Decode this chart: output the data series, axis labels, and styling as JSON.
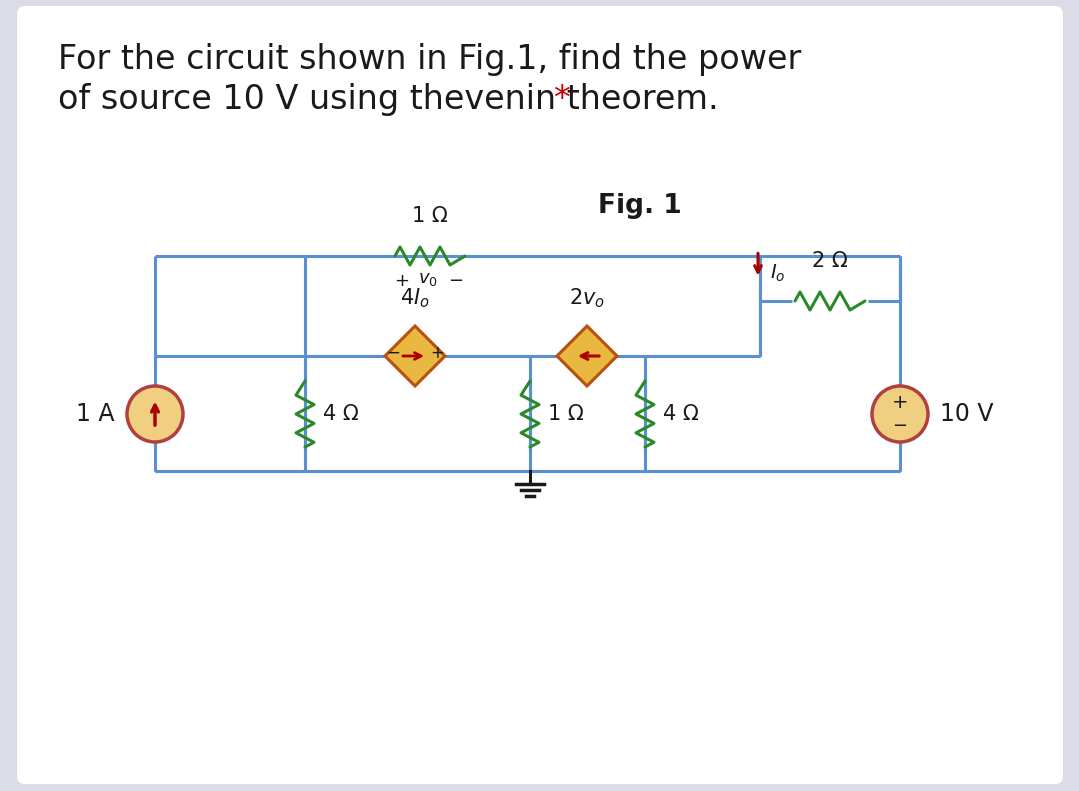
{
  "bg_color": "#dcdce8",
  "panel_color": "#ffffff",
  "wire_color": "#5a8fd0",
  "resistor_color": "#2a8a2a",
  "dep_fill": "#e8b840",
  "dep_border": "#b85010",
  "src_fill": "#f0d080",
  "src_border": "#b04040",
  "arrow_color": "#aa0000",
  "text_color": "#1a1a1a",
  "star_color": "#cc0000",
  "title_line1": "For the circuit shown in Fig.1, find the power",
  "title_line2": "of source 10 V using thevenin theorem.",
  "title_star": "*",
  "fig_label": "Fig. 1",
  "lw_wire": 2.2,
  "lw_res": 2.2
}
